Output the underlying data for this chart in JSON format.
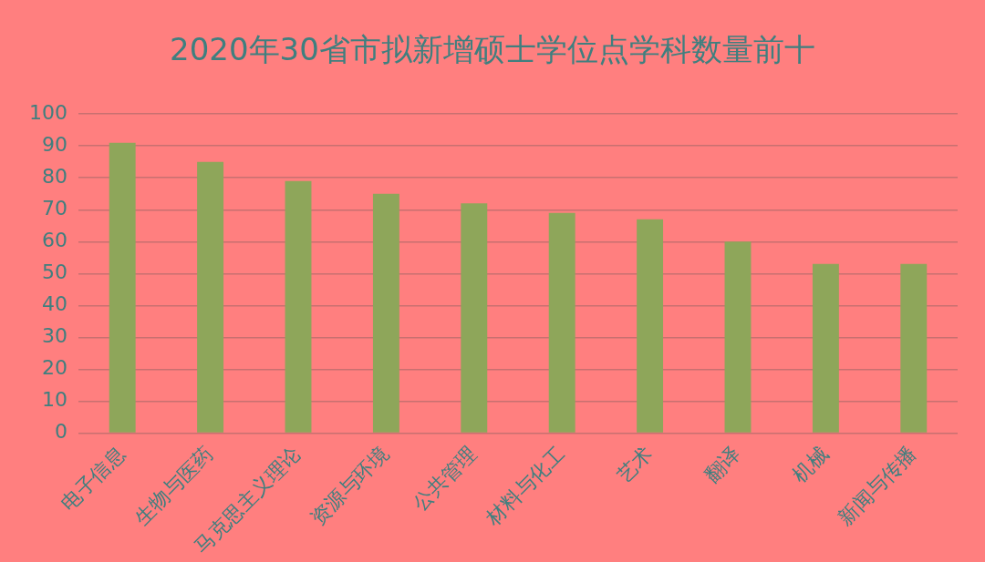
{
  "chart_data": {
    "type": "bar",
    "title": "2020年30省市拟新增硕士学位点学科数量前十",
    "categories": [
      "电子信息",
      "生物与医药",
      "马克思主义理论",
      "资源与环境",
      "公共管理",
      "材料与化工",
      "艺术",
      "翻译",
      "机械",
      "新闻与传播"
    ],
    "values": [
      91,
      85,
      79,
      75,
      72,
      69,
      67,
      60,
      53,
      53
    ],
    "color": "#8ea65a",
    "ylim": [
      0,
      100
    ],
    "yticks": [
      0,
      10,
      20,
      30,
      40,
      50,
      60,
      70,
      80,
      90,
      100
    ],
    "grid": "y",
    "legend": false
  }
}
